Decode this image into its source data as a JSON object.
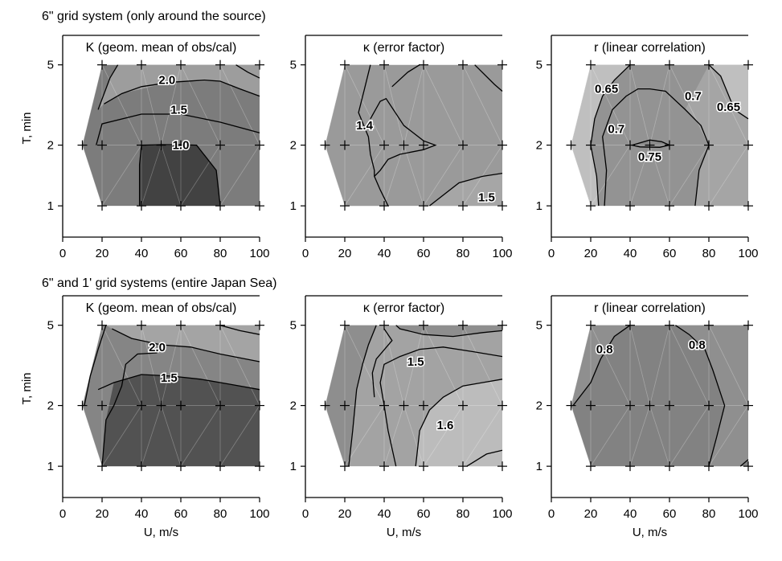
{
  "figure": {
    "rows": [
      {
        "title": "6\" grid system (only around the source)"
      },
      {
        "title": "6\" and 1' grid systems (entire Japan Sea)"
      }
    ],
    "xlabel": "U, m/s",
    "ylabel": "T, min",
    "xticks": [
      "0",
      "20",
      "40",
      "60",
      "80",
      "100"
    ],
    "yticks": [
      "1",
      "2",
      "5"
    ]
  },
  "chart_data": [
    {
      "type": "contour",
      "row": 0,
      "col": 0,
      "title": "K (geom. mean of obs/cal)",
      "xlabel": "",
      "ylabel": "T, min",
      "xlim": [
        0,
        100
      ],
      "ylim_log": [
        0.7,
        7.0
      ],
      "yscale": "log",
      "grid_points": {
        "T1": [
          20,
          40,
          60,
          80,
          100
        ],
        "T2": [
          10,
          20,
          40,
          50,
          60,
          80,
          100
        ],
        "T5": [
          20,
          40,
          60,
          80,
          100
        ]
      },
      "contour_labels": [
        {
          "text": "2.0",
          "x": 53,
          "T": 4.2
        },
        {
          "text": "1.5",
          "x": 59,
          "T": 3.0
        },
        {
          "text": "1.0",
          "x": 60,
          "T": 2.0
        }
      ],
      "fill_colors": [
        "#424242",
        "#686868",
        "#7c7c7c",
        "#9d9d9d"
      ],
      "contours": [
        {
          "points": [
            [
              39,
              1
            ],
            [
              39,
              1.6
            ],
            [
              40,
              2
            ],
            [
              50,
              2.01
            ],
            [
              60,
              2.01
            ],
            [
              68,
              2
            ],
            [
              78,
              1.5
            ],
            [
              80,
              1
            ]
          ]
        },
        {
          "points": [
            [
              17,
              2
            ],
            [
              20,
              2.55
            ],
            [
              40,
              2.85
            ],
            [
              60,
              2.85
            ],
            [
              80,
              2.6
            ],
            [
              100,
              2.3
            ]
          ]
        },
        {
          "points": [
            [
              21,
              3.2
            ],
            [
              30,
              3.6
            ],
            [
              40,
              3.9
            ],
            [
              55,
              4.1
            ],
            [
              72,
              4.2
            ],
            [
              80,
              4.15
            ],
            [
              90,
              3.8
            ],
            [
              100,
              3.5
            ]
          ]
        },
        {
          "points": [
            [
              28,
              5
            ],
            [
              24,
              4.3
            ],
            [
              18,
              3.0
            ]
          ]
        },
        {
          "points": [
            [
              88,
              5
            ],
            [
              94,
              4.6
            ],
            [
              100,
              4.3
            ]
          ]
        }
      ]
    },
    {
      "type": "contour",
      "row": 0,
      "col": 1,
      "title": "κ (error factor)",
      "xlabel": "",
      "ylabel": "",
      "xlim": [
        0,
        100
      ],
      "ylim_log": [
        0.7,
        7.0
      ],
      "yscale": "log",
      "grid_points": {
        "T1": [
          20,
          40,
          60,
          80,
          100
        ],
        "T2": [
          10,
          20,
          40,
          50,
          60,
          80,
          100
        ],
        "T5": [
          20,
          40,
          60,
          80,
          100
        ]
      },
      "contour_labels": [
        {
          "text": "1.4",
          "x": 30,
          "T": 2.5
        },
        {
          "text": "1.5",
          "x": 92,
          "T": 1.1
        }
      ],
      "fill_colors": [
        "#858585",
        "#9a9a9a",
        "#a6a6a6"
      ],
      "contours": [
        {
          "points": [
            [
              33,
              5
            ],
            [
              30,
              3.8
            ],
            [
              27,
              2.9
            ],
            [
              32,
              2.2
            ],
            [
              33,
              1.8
            ],
            [
              35,
              1.5
            ],
            [
              35,
              1.4
            ],
            [
              38,
              1.2
            ],
            [
              42,
              1
            ]
          ]
        },
        {
          "points": [
            [
              33,
              2.7
            ],
            [
              38,
              3.3
            ],
            [
              41,
              3.4
            ],
            [
              50,
              2.5
            ],
            [
              60,
              2.1
            ],
            [
              66,
              2.0
            ],
            [
              60,
              1.9
            ],
            [
              48,
              1.8
            ],
            [
              42,
              1.7
            ],
            [
              38,
              1.5
            ],
            [
              35,
              1.4
            ]
          ]
        },
        {
          "points": [
            [
              58,
              5
            ],
            [
              52,
              4.6
            ],
            [
              44,
              3.9
            ]
          ]
        },
        {
          "points": [
            [
              86,
              5
            ],
            [
              96,
              4.0
            ],
            [
              100,
              3.7
            ]
          ]
        },
        {
          "points": [
            [
              63,
              1
            ],
            [
              78,
              1.3
            ],
            [
              90,
              1.4
            ],
            [
              100,
              1.45
            ]
          ]
        }
      ]
    },
    {
      "type": "contour",
      "row": 0,
      "col": 2,
      "title": "r (linear correlation)",
      "xlabel": "",
      "ylabel": "",
      "xlim": [
        0,
        100
      ],
      "ylim_log": [
        0.7,
        7.0
      ],
      "yscale": "log",
      "grid_points": {
        "T1": [
          20,
          40,
          60,
          80,
          100
        ],
        "T2": [
          10,
          20,
          40,
          50,
          60,
          80,
          100
        ],
        "T5": [
          20,
          40,
          60,
          80,
          100
        ]
      },
      "contour_labels": [
        {
          "text": "0.65",
          "x": 28,
          "T": 3.8
        },
        {
          "text": "0.7",
          "x": 33,
          "T": 2.4
        },
        {
          "text": "0.7",
          "x": 72,
          "T": 3.5
        },
        {
          "text": "0.65",
          "x": 90,
          "T": 3.1
        },
        {
          "text": "0.75",
          "x": 50,
          "T": 1.75
        }
      ],
      "fill_colors": [
        "#bfbfbf",
        "#a5a5a5",
        "#939393",
        "#8a8a8a"
      ],
      "contours": [
        {
          "points": [
            [
              24,
              1
            ],
            [
              23,
              1.4
            ],
            [
              20,
              2
            ],
            [
              22,
              2.7
            ],
            [
              26,
              3.5
            ],
            [
              32,
              4.2
            ],
            [
              40,
              5
            ]
          ]
        },
        {
          "points": [
            [
              27,
              1
            ],
            [
              28,
              1.5
            ],
            [
              26,
              2.2
            ],
            [
              31,
              3.0
            ],
            [
              38,
              3.5
            ],
            [
              44,
              3.8
            ],
            [
              50,
              3.8
            ],
            [
              58,
              3.7
            ],
            [
              68,
              3.0
            ],
            [
              76,
              2.5
            ],
            [
              80,
              2.0
            ],
            [
              75,
              1.5
            ],
            [
              73,
              1.0
            ]
          ]
        },
        {
          "points": [
            [
              41,
              2.0
            ],
            [
              50,
              2.12
            ],
            [
              56,
              2.08
            ],
            [
              60,
              2.0
            ],
            [
              55,
              1.95
            ],
            [
              45,
              1.96
            ],
            [
              41,
              2.0
            ]
          ]
        },
        {
          "points": [
            [
              80,
              5
            ],
            [
              86,
              4.4
            ],
            [
              93,
              3.0
            ],
            [
              100,
              2.7
            ]
          ]
        }
      ]
    },
    {
      "type": "contour",
      "row": 1,
      "col": 0,
      "title": "K (geom. mean of obs/cal)",
      "xlabel": "U, m/s",
      "ylabel": "T, min",
      "xlim": [
        0,
        100
      ],
      "ylim_log": [
        0.7,
        7.0
      ],
      "yscale": "log",
      "grid_points": {
        "T1": [
          20,
          40,
          60,
          80,
          100
        ],
        "T2": [
          10,
          20,
          40,
          50,
          60,
          80,
          100
        ],
        "T5": [
          20,
          40,
          60,
          80,
          100
        ]
      },
      "contour_labels": [
        {
          "text": "2.0",
          "x": 48,
          "T": 3.9
        },
        {
          "text": "1.5",
          "x": 54,
          "T": 2.75
        }
      ],
      "fill_colors": [
        "#525252",
        "#707070",
        "#858585",
        "#a4a4a4"
      ],
      "contours": [
        {
          "points": [
            [
              22,
              5
            ],
            [
              18,
              3.8
            ],
            [
              14,
              2.8
            ],
            [
              11,
              2.0
            ]
          ]
        },
        {
          "points": [
            [
              25,
              4.8
            ],
            [
              35,
              4.3
            ],
            [
              50,
              4.0
            ],
            [
              65,
              3.9
            ],
            [
              80,
              3.6
            ],
            [
              100,
              3.3
            ]
          ]
        },
        {
          "points": [
            [
              18,
              2.4
            ],
            [
              26,
              2.6
            ],
            [
              40,
              2.85
            ],
            [
              55,
              2.8
            ],
            [
              70,
              2.7
            ],
            [
              85,
              2.55
            ],
            [
              100,
              2.4
            ]
          ]
        },
        {
          "points": [
            [
              20,
              1.0
            ],
            [
              22,
              1.7
            ],
            [
              26,
              2.0
            ],
            [
              30,
              2.5
            ],
            [
              32,
              3.2
            ],
            [
              38,
              3.6
            ],
            [
              48,
              3.65
            ]
          ]
        },
        {
          "points": [
            [
              80,
              5
            ],
            [
              90,
              4.7
            ],
            [
              100,
              4.5
            ]
          ]
        }
      ]
    },
    {
      "type": "contour",
      "row": 1,
      "col": 1,
      "title": "κ (error factor)",
      "xlabel": "U, m/s",
      "ylabel": "",
      "xlim": [
        0,
        100
      ],
      "ylim_log": [
        0.7,
        7.0
      ],
      "yscale": "log",
      "grid_points": {
        "T1": [
          20,
          40,
          60,
          80,
          100
        ],
        "T2": [
          10,
          20,
          40,
          50,
          60,
          80,
          100
        ],
        "T5": [
          20,
          40,
          60,
          80,
          100
        ]
      },
      "contour_labels": [
        {
          "text": "1.5",
          "x": 56,
          "T": 3.3
        },
        {
          "text": "1.6",
          "x": 71,
          "T": 1.6
        }
      ],
      "fill_colors": [
        "#8e8e8e",
        "#a3a3a3",
        "#bcbcbc"
      ],
      "contours": [
        {
          "points": [
            [
              36,
              5
            ],
            [
              32,
              4.0
            ],
            [
              29,
              3.2
            ],
            [
              26,
              2.4
            ],
            [
              24,
              1.5
            ],
            [
              22,
              1.0
            ]
          ]
        },
        {
          "points": [
            [
              46,
              1.0
            ],
            [
              42,
              1.5
            ],
            [
              40,
              2.0
            ],
            [
              38,
              2.6
            ],
            [
              40,
              3.2
            ],
            [
              48,
              3.5
            ],
            [
              58,
              3.8
            ],
            [
              70,
              3.9
            ],
            [
              85,
              3.7
            ],
            [
              100,
              3.5
            ]
          ]
        },
        {
          "points": [
            [
              40,
              4.8
            ],
            [
              44,
              4.2
            ],
            [
              36,
              3.4
            ],
            [
              34,
              2.9
            ],
            [
              35,
              2.2
            ]
          ]
        },
        {
          "points": [
            [
              56,
              1.0
            ],
            [
              58,
              1.5
            ],
            [
              63,
              1.9
            ],
            [
              70,
              2.2
            ],
            [
              80,
              2.5
            ],
            [
              90,
              2.6
            ],
            [
              100,
              2.7
            ]
          ]
        },
        {
          "points": [
            [
              82,
              1.0
            ],
            [
              92,
              1.15
            ],
            [
              100,
              1.2
            ]
          ]
        },
        {
          "points": [
            [
              46,
              5
            ],
            [
              48,
              4.8
            ],
            [
              60,
              4.5
            ],
            [
              75,
              4.4
            ],
            [
              90,
              4.6
            ],
            [
              100,
              4.7
            ]
          ]
        }
      ]
    },
    {
      "type": "contour",
      "row": 1,
      "col": 2,
      "title": "r (linear correlation)",
      "xlabel": "U, m/s",
      "ylabel": "",
      "xlim": [
        0,
        100
      ],
      "ylim_log": [
        0.7,
        7.0
      ],
      "yscale": "log",
      "grid_points": {
        "T1": [
          20,
          40,
          60,
          80,
          100
        ],
        "T2": [
          10,
          20,
          40,
          50,
          60,
          80,
          100
        ],
        "T5": [
          20,
          40,
          60,
          80,
          100
        ]
      },
      "contour_labels": [
        {
          "text": "0.8",
          "x": 27,
          "T": 3.8
        },
        {
          "text": "0.8",
          "x": 74,
          "T": 4.0
        }
      ],
      "fill_colors": [
        "#8f8f8f",
        "#828282",
        "#777777"
      ],
      "contours": [
        {
          "points": [
            [
              40,
              5
            ],
            [
              32,
              4.4
            ],
            [
              25,
              3.4
            ],
            [
              20,
              2.6
            ],
            [
              11,
              2.0
            ]
          ]
        },
        {
          "points": [
            [
              63,
              5
            ],
            [
              70,
              4.5
            ],
            [
              78,
              3.8
            ],
            [
              82,
              3.0
            ],
            [
              88,
              2.0
            ],
            [
              84,
              1.4
            ],
            [
              80,
              1.0
            ]
          ]
        },
        {
          "points": [
            [
              96,
              1
            ],
            [
              100,
              1.08
            ]
          ]
        }
      ]
    }
  ]
}
